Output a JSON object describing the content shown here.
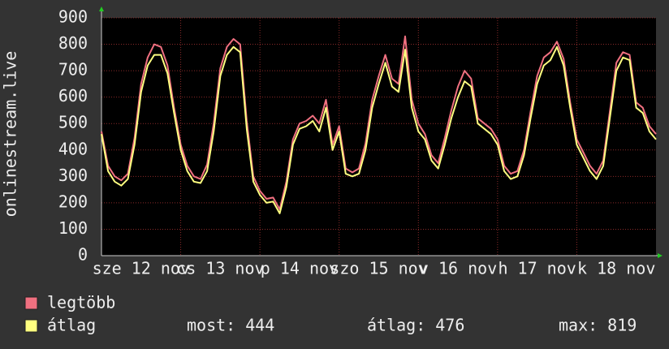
{
  "chart_data": {
    "type": "line",
    "ylabel": "onlinestream.live",
    "x": [
      0,
      2,
      4,
      6,
      8,
      10,
      12,
      14,
      16,
      18,
      20,
      22,
      24,
      26,
      28,
      30,
      32,
      34,
      36,
      38,
      40,
      42,
      44,
      46,
      48,
      50,
      52,
      54,
      56,
      58,
      60,
      62,
      64,
      66,
      68,
      70,
      72,
      74,
      76,
      78,
      80,
      82,
      84,
      86,
      88,
      90,
      92,
      94,
      96,
      98,
      100,
      102,
      104,
      106,
      108,
      110,
      112,
      114,
      116,
      118,
      120,
      122,
      124,
      126,
      128,
      130,
      132,
      134,
      136,
      138,
      140,
      142,
      144,
      146,
      148,
      150,
      152,
      154,
      156,
      158,
      160,
      162,
      164,
      166,
      168
    ],
    "xlim": [
      0,
      168
    ],
    "xticks": [
      {
        "value": 0,
        "label": "sze 12 nov"
      },
      {
        "value": 24,
        "label": "cs 13 nov"
      },
      {
        "value": 48,
        "label": "p 14 nov"
      },
      {
        "value": 72,
        "label": "szo 15 nov"
      },
      {
        "value": 96,
        "label": "v 16 nov"
      },
      {
        "value": 120,
        "label": "h 17 nov"
      },
      {
        "value": 144,
        "label": "k 18 nov"
      }
    ],
    "ylim": [
      0,
      900
    ],
    "yticks": [
      0,
      100,
      200,
      300,
      400,
      500,
      600,
      700,
      800,
      900
    ],
    "grid": true,
    "series": [
      {
        "name": "legtöbb",
        "color": "#f07080",
        "values": [
          470,
          340,
          300,
          285,
          310,
          445,
          650,
          750,
          800,
          790,
          720,
          560,
          420,
          340,
          300,
          290,
          345,
          500,
          710,
          790,
          820,
          800,
          510,
          300,
          245,
          215,
          220,
          175,
          280,
          440,
          500,
          510,
          530,
          500,
          590,
          420,
          490,
          330,
          315,
          330,
          425,
          590,
          680,
          760,
          670,
          650,
          830,
          590,
          500,
          460,
          380,
          350,
          445,
          550,
          640,
          700,
          670,
          520,
          500,
          480,
          440,
          340,
          310,
          320,
          400,
          545,
          680,
          750,
          770,
          810,
          745,
          580,
          440,
          390,
          340,
          310,
          360,
          545,
          730,
          770,
          760,
          580,
          560,
          490,
          460
        ]
      },
      {
        "name": "átlag",
        "color": "#ffff80",
        "values": [
          460,
          320,
          280,
          265,
          290,
          420,
          620,
          720,
          760,
          760,
          690,
          540,
          400,
          320,
          280,
          275,
          320,
          470,
          680,
          760,
          790,
          770,
          480,
          280,
          230,
          200,
          205,
          160,
          260,
          420,
          480,
          490,
          510,
          470,
          560,
          400,
          470,
          310,
          300,
          310,
          400,
          560,
          650,
          730,
          640,
          620,
          780,
          560,
          470,
          440,
          360,
          330,
          420,
          520,
          600,
          660,
          640,
          500,
          480,
          460,
          420,
          320,
          290,
          300,
          380,
          520,
          650,
          720,
          740,
          790,
          720,
          560,
          420,
          370,
          320,
          290,
          340,
          520,
          700,
          750,
          740,
          560,
          540,
          470,
          440
        ]
      }
    ],
    "stats": [
      {
        "label": "most:",
        "value": 444
      },
      {
        "label": "átlag:",
        "value": 476
      },
      {
        "label": "max:",
        "value": 819
      }
    ]
  }
}
